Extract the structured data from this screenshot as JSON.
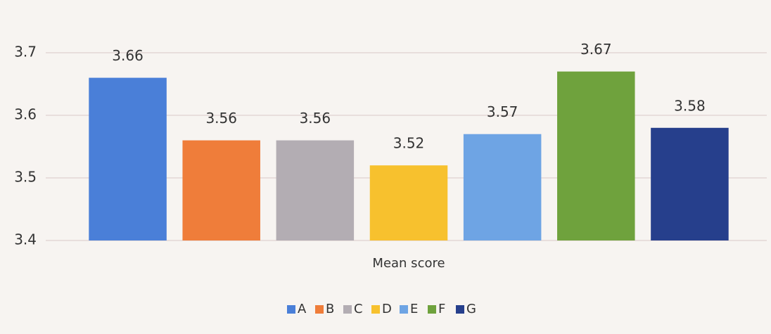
{
  "chart_data": {
    "type": "bar",
    "categories": [
      "Mean score"
    ],
    "series": [
      {
        "name": "A",
        "color": "#4a7fd8",
        "values": [
          3.66
        ]
      },
      {
        "name": "B",
        "color": "#ef7d3a",
        "values": [
          3.56
        ]
      },
      {
        "name": "C",
        "color": "#b3adb3",
        "values": [
          3.56
        ]
      },
      {
        "name": "D",
        "color": "#f7c12e",
        "values": [
          3.52
        ]
      },
      {
        "name": "E",
        "color": "#6ea4e4",
        "values": [
          3.57
        ]
      },
      {
        "name": "F",
        "color": "#6fa23d",
        "values": [
          3.67
        ]
      },
      {
        "name": "G",
        "color": "#263f8c",
        "values": [
          3.58
        ]
      }
    ],
    "ylim": [
      3.4,
      3.7
    ],
    "yticks": [
      3.4,
      3.5,
      3.6,
      3.7
    ],
    "grid": true,
    "legend": "bottom"
  }
}
